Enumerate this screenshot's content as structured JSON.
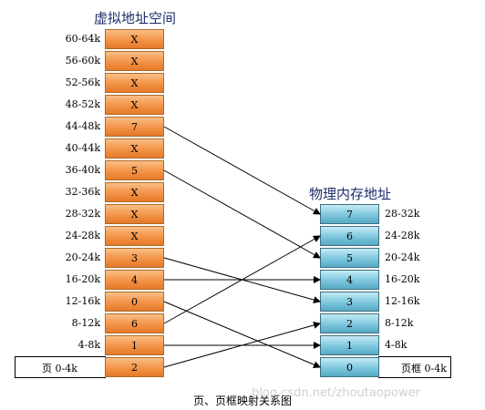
{
  "virtual": {
    "title": "虚拟地址空间",
    "pages": [
      {
        "range": "60-64k",
        "frame": "X"
      },
      {
        "range": "56-60k",
        "frame": "X"
      },
      {
        "range": "52-56k",
        "frame": "X"
      },
      {
        "range": "48-52k",
        "frame": "X"
      },
      {
        "range": "44-48k",
        "frame": "7"
      },
      {
        "range": "40-44k",
        "frame": "X"
      },
      {
        "range": "36-40k",
        "frame": "5"
      },
      {
        "range": "32-36k",
        "frame": "X"
      },
      {
        "range": "28-32k",
        "frame": "X"
      },
      {
        "range": "24-28k",
        "frame": "X"
      },
      {
        "range": "20-24k",
        "frame": "3"
      },
      {
        "range": "16-20k",
        "frame": "4"
      },
      {
        "range": "12-16k",
        "frame": "0"
      },
      {
        "range": "8-12k",
        "frame": "6"
      },
      {
        "range": "4-8k",
        "frame": "1"
      },
      {
        "range": "",
        "frame": "2"
      }
    ],
    "side_label": "页 0-4k"
  },
  "physical": {
    "title": "物理内存地址",
    "frames": [
      {
        "number": "7",
        "range": "28-32k"
      },
      {
        "number": "6",
        "range": "24-28k"
      },
      {
        "number": "5",
        "range": "20-24k"
      },
      {
        "number": "4",
        "range": "16-20k"
      },
      {
        "number": "3",
        "range": "12-16k"
      },
      {
        "number": "2",
        "range": "8-12k"
      },
      {
        "number": "1",
        "range": "4-8k"
      },
      {
        "number": "0",
        "range": ""
      }
    ],
    "side_label": "页框 0-4k"
  },
  "caption": "页、页框映射关系图",
  "watermark": "blog.csdn.net/zhoutaopower"
}
